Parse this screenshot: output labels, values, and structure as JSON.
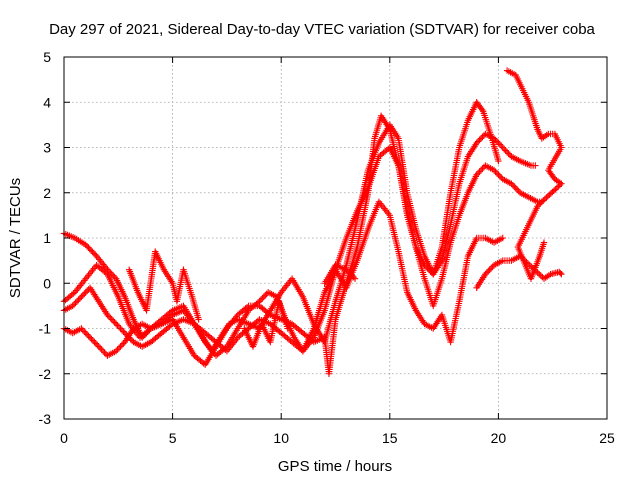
{
  "chart_data": {
    "type": "scatter",
    "title": "Day 297 of 2021, Sidereal Day-to-day VTEC variation (SDTVAR) for receiver coba",
    "xlabel": "GPS time / hours",
    "ylabel": "SDTVAR / TECUs",
    "xlim": [
      0,
      25
    ],
    "ylim": [
      -3,
      5
    ],
    "x_ticks": [
      "0",
      "5",
      "10",
      "15",
      "20",
      "25"
    ],
    "y_ticks": [
      "-3",
      "-2",
      "-1",
      "0",
      "1",
      "2",
      "3",
      "4",
      "5"
    ],
    "grid": true,
    "legend": "none",
    "marker": "+",
    "color": "#ff0000",
    "series": [
      {
        "points": [
          [
            0.0,
            1.1
          ],
          [
            0.5,
            1.0
          ],
          [
            1.0,
            0.85
          ],
          [
            1.5,
            0.6
          ],
          [
            2.0,
            0.3
          ],
          [
            2.4,
            0.1
          ],
          [
            2.8,
            -0.3
          ],
          [
            3.2,
            -0.8
          ],
          [
            3.6,
            -1.2
          ],
          [
            4.0,
            -1.0
          ],
          [
            4.5,
            -0.9
          ],
          [
            5.0,
            -0.8
          ],
          [
            5.5,
            -1.2
          ],
          [
            6.0,
            -1.6
          ],
          [
            6.5,
            -1.8
          ],
          [
            7.0,
            -1.4
          ],
          [
            7.5,
            -1.0
          ],
          [
            8.0,
            -0.7
          ],
          [
            8.5,
            -0.5
          ],
          [
            9.0,
            -0.5
          ],
          [
            9.5,
            -0.7
          ],
          [
            10.0,
            -0.8
          ],
          [
            10.5,
            -0.9
          ],
          [
            11.0,
            -1.1
          ],
          [
            11.5,
            -1.3
          ],
          [
            12.0,
            -1.2
          ],
          [
            12.2,
            -2.0
          ],
          [
            12.5,
            -0.8
          ],
          [
            13.0,
            0.0
          ],
          [
            13.5,
            0.8
          ],
          [
            14.0,
            2.0
          ],
          [
            14.3,
            3.2
          ],
          [
            14.6,
            3.7
          ],
          [
            15.0,
            3.4
          ],
          [
            15.4,
            2.6
          ],
          [
            15.8,
            1.5
          ],
          [
            16.2,
            0.8
          ],
          [
            16.6,
            0.4
          ],
          [
            17.0,
            0.2
          ],
          [
            17.4,
            0.8
          ],
          [
            17.8,
            2.0
          ],
          [
            18.2,
            3.0
          ],
          [
            18.6,
            3.6
          ],
          [
            19.0,
            4.0
          ],
          [
            19.3,
            3.8
          ],
          [
            19.7,
            3.2
          ],
          [
            20.0,
            2.7
          ]
        ]
      },
      {
        "points": [
          [
            0.0,
            -0.4
          ],
          [
            0.5,
            -0.2
          ],
          [
            1.0,
            0.1
          ],
          [
            1.5,
            0.4
          ],
          [
            2.0,
            0.2
          ],
          [
            2.5,
            -0.3
          ],
          [
            3.0,
            -0.9
          ],
          [
            3.5,
            -1.2
          ],
          [
            4.0,
            -1.0
          ],
          [
            4.5,
            -0.8
          ],
          [
            5.0,
            -0.6
          ],
          [
            5.5,
            -0.5
          ],
          [
            6.0,
            -0.9
          ],
          [
            6.4,
            -1.2
          ],
          [
            6.8,
            -1.5
          ],
          [
            7.2,
            -1.2
          ],
          [
            7.6,
            -0.9
          ],
          [
            8.0,
            -0.8
          ],
          [
            8.5,
            -0.9
          ],
          [
            9.0,
            -1.0
          ],
          [
            9.5,
            -0.6
          ],
          [
            10.0,
            -0.2
          ],
          [
            10.5,
            0.1
          ],
          [
            11.0,
            -0.3
          ],
          [
            11.5,
            -0.9
          ],
          [
            12.0,
            -1.3
          ],
          [
            12.5,
            -0.4
          ],
          [
            13.0,
            0.4
          ],
          [
            13.5,
            1.4
          ],
          [
            14.0,
            2.5
          ],
          [
            14.5,
            3.1
          ],
          [
            15.0,
            3.5
          ],
          [
            15.4,
            3.2
          ],
          [
            15.8,
            2.0
          ],
          [
            16.2,
            1.2
          ],
          [
            16.6,
            0.6
          ],
          [
            17.0,
            0.2
          ],
          [
            17.4,
            0.5
          ],
          [
            17.8,
            1.3
          ],
          [
            18.2,
            2.2
          ],
          [
            18.6,
            2.8
          ],
          [
            19.0,
            3.1
          ],
          [
            19.4,
            3.3
          ],
          [
            19.8,
            3.2
          ],
          [
            20.2,
            3.0
          ],
          [
            20.6,
            2.8
          ],
          [
            21.0,
            2.7
          ],
          [
            21.5,
            2.6
          ],
          [
            21.7,
            2.6
          ]
        ]
      },
      {
        "points": [
          [
            0.0,
            -0.6
          ],
          [
            0.4,
            -0.5
          ],
          [
            0.8,
            -0.3
          ],
          [
            1.2,
            -0.1
          ],
          [
            1.6,
            -0.4
          ],
          [
            2.0,
            -0.7
          ],
          [
            2.4,
            -0.9
          ],
          [
            2.8,
            -1.1
          ],
          [
            3.2,
            -1.3
          ],
          [
            3.6,
            -1.4
          ],
          [
            4.0,
            -1.3
          ],
          [
            4.5,
            -1.1
          ],
          [
            5.0,
            -0.9
          ],
          [
            5.5,
            -0.8
          ],
          [
            6.0,
            -0.9
          ],
          [
            6.5,
            -1.1
          ],
          [
            7.0,
            -1.3
          ],
          [
            7.5,
            -1.5
          ],
          [
            8.0,
            -1.2
          ],
          [
            8.5,
            -1.0
          ],
          [
            9.0,
            -0.8
          ],
          [
            9.5,
            -0.9
          ],
          [
            10.0,
            -1.1
          ],
          [
            10.5,
            -1.3
          ],
          [
            11.0,
            -1.5
          ],
          [
            11.5,
            -1.2
          ],
          [
            12.0,
            -0.6
          ],
          [
            12.5,
            0.3
          ],
          [
            13.0,
            1.0
          ],
          [
            13.5,
            1.6
          ],
          [
            14.0,
            2.1
          ],
          [
            14.5,
            2.8
          ],
          [
            15.0,
            3.0
          ],
          [
            15.4,
            2.6
          ],
          [
            15.8,
            1.6
          ],
          [
            16.2,
            0.8
          ],
          [
            16.6,
            0.1
          ],
          [
            17.0,
            -0.5
          ],
          [
            17.4,
            0.1
          ],
          [
            17.8,
            0.9
          ],
          [
            18.2,
            1.5
          ],
          [
            18.6,
            2.0
          ],
          [
            19.0,
            2.4
          ],
          [
            19.4,
            2.6
          ],
          [
            19.8,
            2.5
          ],
          [
            20.2,
            2.3
          ],
          [
            20.6,
            2.2
          ],
          [
            21.0,
            2.0
          ],
          [
            21.4,
            1.9
          ],
          [
            21.8,
            1.8
          ],
          [
            22.0,
            1.8
          ]
        ]
      },
      {
        "points": [
          [
            0.0,
            -1.0
          ],
          [
            0.4,
            -1.1
          ],
          [
            0.8,
            -1.0
          ],
          [
            1.2,
            -1.2
          ],
          [
            1.6,
            -1.4
          ],
          [
            2.0,
            -1.6
          ],
          [
            2.4,
            -1.5
          ],
          [
            2.8,
            -1.3
          ],
          [
            3.2,
            -1.0
          ],
          [
            3.6,
            -0.9
          ],
          [
            4.0,
            -1.0
          ],
          [
            4.5,
            -0.9
          ],
          [
            5.0,
            -0.7
          ],
          [
            5.5,
            -0.6
          ],
          [
            6.0,
            -0.9
          ],
          [
            6.5,
            -1.3
          ],
          [
            7.0,
            -1.6
          ],
          [
            7.5,
            -1.4
          ],
          [
            8.0,
            -1.0
          ],
          [
            8.5,
            -0.6
          ],
          [
            9.0,
            -0.4
          ],
          [
            9.4,
            -0.2
          ],
          [
            9.8,
            -0.3
          ],
          [
            10.2,
            -0.8
          ],
          [
            10.6,
            -1.2
          ],
          [
            11.0,
            -1.5
          ],
          [
            11.5,
            -1.0
          ],
          [
            12.0,
            -0.2
          ],
          [
            12.5,
            0.3
          ],
          [
            13.0,
            -0.1
          ],
          [
            13.5,
            0.5
          ],
          [
            14.0,
            1.2
          ],
          [
            14.5,
            1.8
          ],
          [
            15.0,
            1.5
          ],
          [
            15.4,
            0.7
          ],
          [
            15.8,
            -0.2
          ],
          [
            16.2,
            -0.6
          ],
          [
            16.6,
            -0.9
          ],
          [
            17.0,
            -1.0
          ],
          [
            17.4,
            -0.7
          ],
          [
            17.8,
            -1.3
          ],
          [
            18.2,
            -0.4
          ],
          [
            18.6,
            0.6
          ],
          [
            19.0,
            1.0
          ],
          [
            19.4,
            1.0
          ],
          [
            19.8,
            0.9
          ],
          [
            20.2,
            1.0
          ]
        ]
      },
      {
        "points": [
          [
            3.0,
            0.3
          ],
          [
            3.4,
            -0.2
          ],
          [
            3.8,
            -0.6
          ],
          [
            4.2,
            0.7
          ],
          [
            4.6,
            0.3
          ],
          [
            5.0,
            0.0
          ],
          [
            5.2,
            -0.4
          ],
          [
            5.5,
            0.3
          ],
          [
            5.9,
            -0.3
          ],
          [
            6.2,
            -0.8
          ],
          [
            8.3,
            -1.0
          ],
          [
            8.7,
            -1.4
          ],
          [
            9.1,
            -0.9
          ],
          [
            9.5,
            -1.3
          ],
          [
            9.9,
            -0.4
          ],
          [
            10.3,
            -1.0
          ],
          [
            12.0,
            0.0
          ],
          [
            12.5,
            0.4
          ],
          [
            13.0,
            0.3
          ],
          [
            13.4,
            0.1
          ]
        ]
      },
      {
        "points": [
          [
            20.4,
            4.7
          ],
          [
            20.8,
            4.6
          ],
          [
            21.1,
            4.3
          ],
          [
            21.4,
            4.0
          ],
          [
            21.6,
            3.7
          ],
          [
            21.8,
            3.4
          ],
          [
            22.0,
            3.2
          ],
          [
            22.3,
            3.3
          ],
          [
            22.6,
            3.3
          ],
          [
            22.9,
            3.0
          ],
          [
            22.3,
            2.5
          ],
          [
            22.6,
            2.3
          ],
          [
            22.9,
            2.2
          ],
          [
            22.0,
            1.8
          ],
          [
            21.8,
            1.7
          ],
          [
            21.5,
            1.4
          ],
          [
            21.2,
            1.1
          ],
          [
            20.9,
            0.8
          ],
          [
            21.5,
            0.1
          ],
          [
            21.9,
            0.6
          ],
          [
            22.1,
            0.9
          ],
          [
            19.0,
            -0.1
          ],
          [
            19.4,
            0.2
          ],
          [
            19.8,
            0.4
          ],
          [
            20.2,
            0.5
          ],
          [
            20.6,
            0.5
          ],
          [
            21.0,
            0.6
          ],
          [
            22.1,
            0.1
          ],
          [
            22.4,
            0.2
          ],
          [
            22.8,
            0.25
          ],
          [
            22.9,
            0.2
          ]
        ]
      }
    ]
  }
}
